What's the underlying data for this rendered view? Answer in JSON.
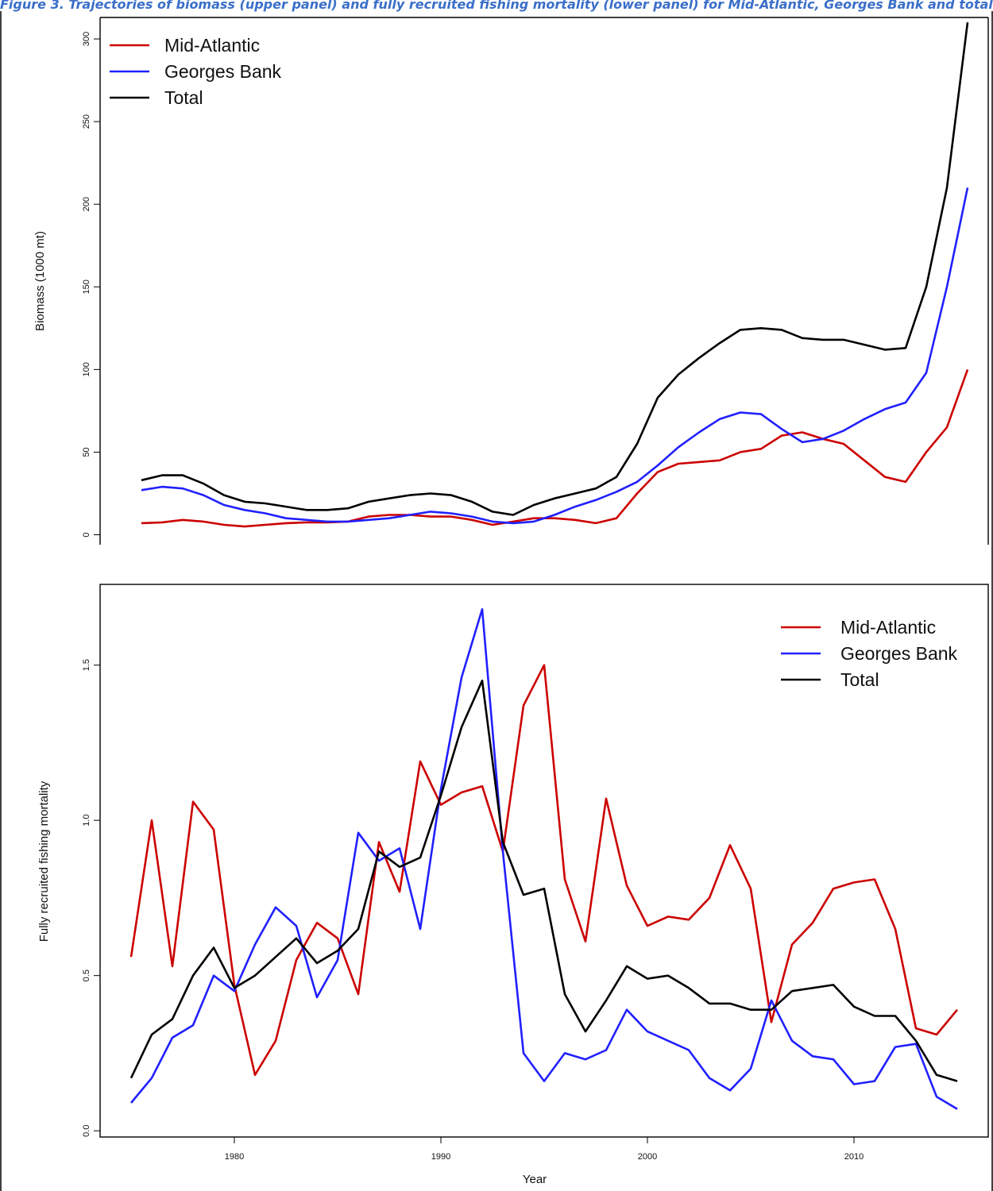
{
  "caption": "Figure 3. Trajectories of biomass (upper panel) and fully recruited fishing mortality (lower panel) for Mid-Atlantic, Georges Bank and total.",
  "colors": {
    "mid_atlantic": "#cc0000",
    "georges_bank": "#2020ff",
    "total": "#000000"
  },
  "chart_data": [
    {
      "type": "line",
      "ylabel": "Biomass (1000 mt)",
      "xlabel": "",
      "xlim": [
        1973,
        2016
      ],
      "ylim": [
        -6,
        313
      ],
      "yticks": [
        0,
        50,
        100,
        150,
        200,
        250,
        300
      ],
      "legend_position": "top-left",
      "x": [
        1975,
        1976,
        1977,
        1978,
        1979,
        1980,
        1981,
        1982,
        1983,
        1984,
        1985,
        1986,
        1987,
        1988,
        1989,
        1990,
        1991,
        1992,
        1993,
        1994,
        1995,
        1996,
        1997,
        1998,
        1999,
        2000,
        2001,
        2002,
        2003,
        2004,
        2005,
        2006,
        2007,
        2008,
        2009,
        2010,
        2011,
        2012,
        2013,
        2014,
        2015
      ],
      "series": [
        {
          "name": "Mid-Atlantic",
          "color": "#cc0000",
          "values": [
            7,
            7.5,
            9,
            8,
            6,
            5,
            6,
            7,
            7.5,
            7.5,
            8,
            11,
            12,
            12,
            11,
            11,
            9,
            6,
            8,
            10,
            10,
            9,
            7,
            10,
            25,
            38,
            43,
            44,
            45,
            50,
            52,
            60,
            62,
            58,
            55,
            45,
            35,
            32,
            50,
            65,
            100
          ]
        },
        {
          "name": "Georges Bank",
          "color": "#2020ff",
          "values": [
            27,
            29,
            28,
            24,
            18,
            15,
            13,
            10,
            9,
            8,
            8,
            9,
            10,
            12,
            14,
            13,
            11,
            8,
            7,
            8,
            12,
            17,
            21,
            26,
            32,
            42,
            53,
            62,
            70,
            74,
            73,
            64,
            56,
            58,
            63,
            70,
            76,
            80,
            98,
            150,
            210
          ]
        },
        {
          "name": "Total",
          "color": "#000000",
          "values": [
            33,
            36,
            36,
            31,
            24,
            20,
            19,
            17,
            15,
            15,
            16,
            20,
            22,
            24,
            25,
            24,
            20,
            14,
            12,
            18,
            22,
            25,
            28,
            35,
            55,
            83,
            97,
            107,
            116,
            124,
            125,
            124,
            119,
            118,
            118,
            115,
            112,
            113,
            150,
            210,
            310
          ]
        }
      ]
    },
    {
      "type": "line",
      "ylabel": "Fully recruited fishing mortality",
      "xlabel": "Year",
      "xlim": [
        1973.5,
        2016.5
      ],
      "ylim": [
        -0.02,
        1.76
      ],
      "yticks": [
        0.0,
        0.5,
        1.0,
        1.5
      ],
      "xticks": [
        1980,
        1990,
        2000,
        2010
      ],
      "legend_position": "top-right",
      "x": [
        1975,
        1976,
        1977,
        1978,
        1979,
        1980,
        1981,
        1982,
        1983,
        1984,
        1985,
        1986,
        1987,
        1988,
        1989,
        1990,
        1991,
        1992,
        1993,
        1994,
        1995,
        1996,
        1997,
        1998,
        1999,
        2000,
        2001,
        2002,
        2003,
        2004,
        2005,
        2006,
        2007,
        2008,
        2009,
        2010,
        2011,
        2012,
        2013,
        2014,
        2015
      ],
      "series": [
        {
          "name": "Mid-Atlantic",
          "color": "#cc0000",
          "values": [
            0.56,
            1.0,
            0.53,
            1.06,
            0.97,
            0.47,
            0.18,
            0.29,
            0.55,
            0.67,
            0.62,
            0.44,
            0.93,
            0.77,
            1.19,
            1.05,
            1.09,
            1.11,
            0.9,
            1.37,
            1.5,
            0.81,
            0.61,
            1.07,
            0.79,
            0.66,
            0.69,
            0.68,
            0.75,
            0.92,
            0.78,
            0.35,
            0.6,
            0.67,
            0.78,
            0.8,
            0.81,
            0.65,
            0.33,
            0.31,
            0.39
          ]
        },
        {
          "name": "Georges Bank",
          "color": "#2020ff",
          "values": [
            0.09,
            0.17,
            0.3,
            0.34,
            0.5,
            0.45,
            0.6,
            0.72,
            0.66,
            0.43,
            0.55,
            0.96,
            0.87,
            0.91,
            0.65,
            1.1,
            1.46,
            1.68,
            0.9,
            0.25,
            0.16,
            0.25,
            0.23,
            0.26,
            0.39,
            0.32,
            0.29,
            0.26,
            0.17,
            0.13,
            0.2,
            0.42,
            0.29,
            0.24,
            0.23,
            0.15,
            0.16,
            0.27,
            0.28,
            0.11,
            0.07
          ]
        },
        {
          "name": "Total",
          "color": "#000000",
          "values": [
            0.17,
            0.31,
            0.36,
            0.5,
            0.59,
            0.46,
            0.5,
            0.56,
            0.62,
            0.54,
            0.58,
            0.65,
            0.9,
            0.85,
            0.88,
            1.08,
            1.3,
            1.45,
            0.93,
            0.76,
            0.78,
            0.44,
            0.32,
            0.42,
            0.53,
            0.49,
            0.5,
            0.46,
            0.41,
            0.41,
            0.39,
            0.39,
            0.45,
            0.46,
            0.47,
            0.4,
            0.37,
            0.37,
            0.29,
            0.18,
            0.16
          ]
        }
      ]
    }
  ]
}
